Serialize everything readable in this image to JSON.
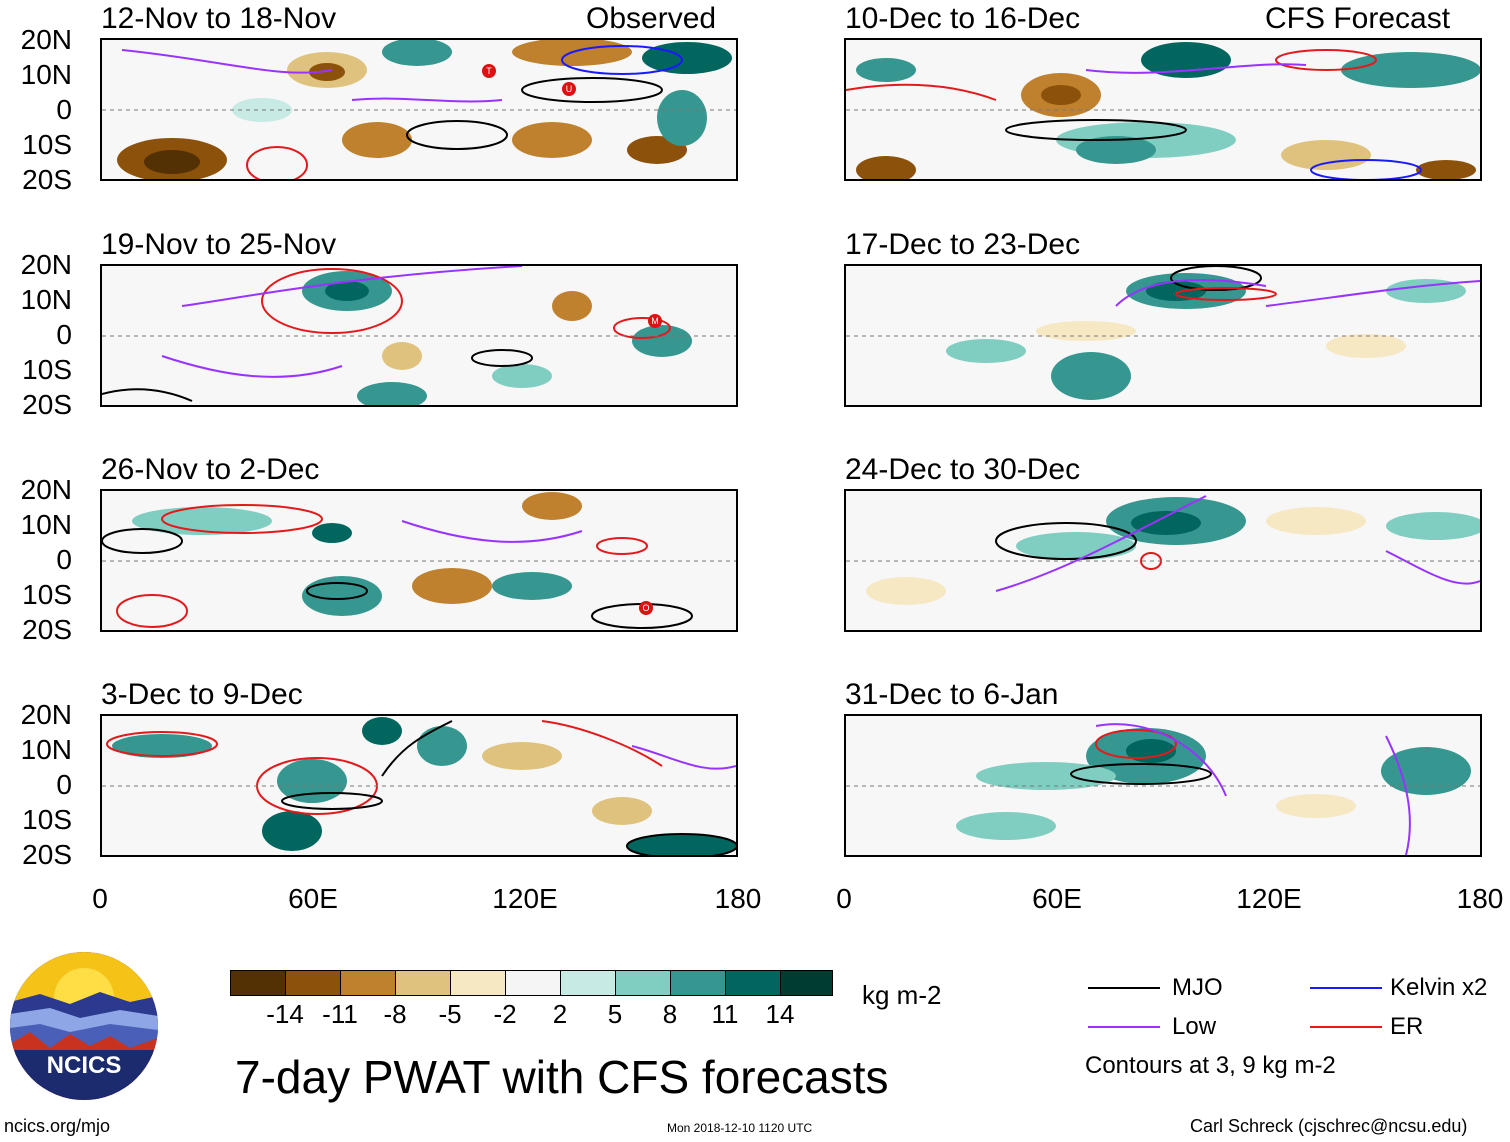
{
  "left_header": "Observed",
  "right_header": "CFS Forecast",
  "panels_left": [
    {
      "title": "12-Nov to 18-Nov"
    },
    {
      "title": "19-Nov to 25-Nov"
    },
    {
      "title": "26-Nov to 2-Dec"
    },
    {
      "title": "3-Dec to 9-Dec"
    }
  ],
  "panels_right": [
    {
      "title": "10-Dec to 16-Dec"
    },
    {
      "title": "17-Dec to 23-Dec"
    },
    {
      "title": "24-Dec to 30-Dec"
    },
    {
      "title": "31-Dec to 6-Jan"
    }
  ],
  "lat_labels": [
    "20N",
    "10N",
    "0",
    "10S",
    "20S"
  ],
  "lon_labels": [
    "0",
    "60E",
    "120E",
    "180"
  ],
  "storm_markers": [
    "T",
    "U",
    "M",
    "O"
  ],
  "colorbar": {
    "unit": "kg m-2",
    "colors": [
      "#543005",
      "#8c510a",
      "#bf812d",
      "#dfc27d",
      "#f6e8c3",
      "#f5f5f5",
      "#c7eae5",
      "#80cdc1",
      "#35978f",
      "#01665e",
      "#003c30"
    ],
    "labels": [
      "-14",
      "-11",
      "-8",
      "-5",
      "-2",
      "2",
      "5",
      "8",
      "11",
      "14"
    ]
  },
  "legend": {
    "mjo": "MJO",
    "kelvin": "Kelvin x2",
    "low": "Low",
    "er": "ER",
    "contours": "Contours at 3, 9 kg m-2",
    "colors": {
      "mjo": "#000000",
      "kelvin": "#1a1aff",
      "low": "#9933ff",
      "er": "#e31a1c"
    }
  },
  "main_title": "7-day PWAT with CFS forecasts",
  "logo_text": "NCICS",
  "footer": {
    "url": "ncics.org/mjo",
    "timestamp": "Mon 2018-12-10 1120 UTC",
    "author": "Carl Schreck (cjschrec@ncsu.edu)"
  }
}
